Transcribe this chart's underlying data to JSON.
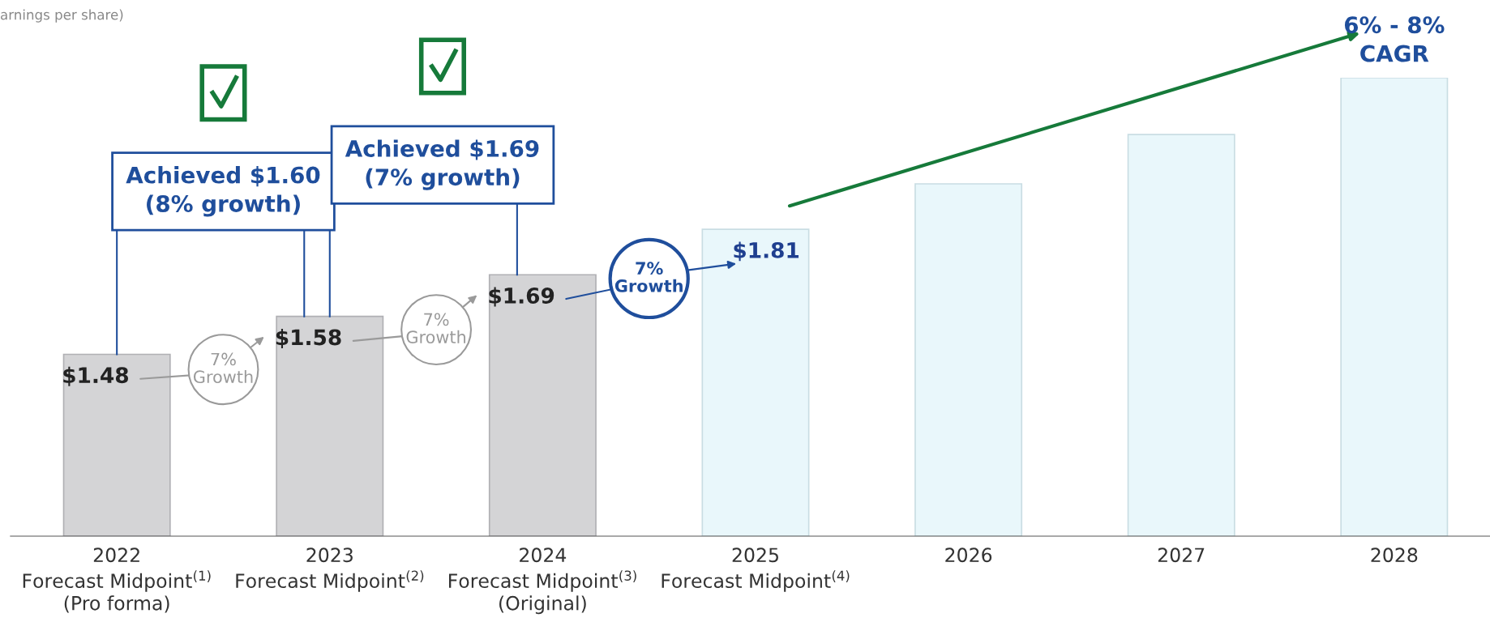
{
  "chart_data": {
    "type": "bar",
    "title": "arnings per share)",
    "categories": [
      "2022\nForecast Midpoint$^{(1)}$\n(Pro forma)",
      "2023\nForecast Midpoint$^{(2)}$",
      "2024\nForecast Midpoint$^{(3)}$\n(Original)",
      "2025\nForecast Midpoint$^{(4)}$",
      "2026",
      "2027",
      "2028"
    ],
    "values": [
      1.48,
      1.58,
      1.69,
      1.81,
      1.93,
      2.06,
      2.21
    ],
    "colors": [
      "#d4d4d6",
      "#d4d4d6",
      "#d4d4d6",
      "#e9f7fb",
      "#e9f7fb",
      "#e9f7fb",
      "#e9f7fb"
    ],
    "value_labels": [
      "$1.48",
      "$1.58",
      "$1.69",
      "$1.81",
      null,
      null,
      null
    ],
    "ylim": [
      1.0,
      2.21
    ],
    "tick_labels": "x",
    "grid": false,
    "legend": false,
    "annotations": [
      "Achieved $1.60\n(8% growth)",
      "Achieved $1.69\n(7% growth)",
      "7%\nGrowth",
      "7%\nGrowth",
      "7%\nGrowth",
      "6% - 8%\nCAGR"
    ]
  }
}
